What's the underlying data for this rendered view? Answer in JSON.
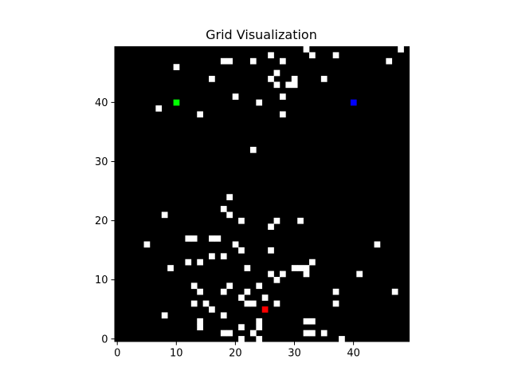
{
  "chart_data": {
    "type": "heatmap",
    "title": "Grid Visualization",
    "grid_size": [
      50,
      50
    ],
    "xlim": [
      0,
      49
    ],
    "ylim": [
      0,
      49
    ],
    "y_origin": "bottom",
    "x_ticks": [
      "0",
      "10",
      "20",
      "30",
      "40"
    ],
    "y_ticks": [
      "0",
      "10",
      "20",
      "30",
      "40"
    ],
    "colors": {
      "background": "#000000",
      "obstacle": "#ffffff",
      "start": "#00ff00",
      "goal": "#0000ff",
      "agent": "#ff0000"
    },
    "markers": [
      {
        "name": "start",
        "x": 10,
        "y": 40
      },
      {
        "name": "goal",
        "x": 40,
        "y": 40
      },
      {
        "name": "agent",
        "x": 25,
        "y": 5
      }
    ],
    "obstacles": [
      [
        32,
        49
      ],
      [
        48,
        49
      ],
      [
        26,
        48
      ],
      [
        33,
        48
      ],
      [
        37,
        48
      ],
      [
        18,
        47
      ],
      [
        19,
        47
      ],
      [
        23,
        47
      ],
      [
        28,
        47
      ],
      [
        46,
        47
      ],
      [
        10,
        46
      ],
      [
        27,
        45
      ],
      [
        16,
        44
      ],
      [
        26,
        44
      ],
      [
        30,
        44
      ],
      [
        35,
        44
      ],
      [
        27,
        43
      ],
      [
        29,
        43
      ],
      [
        30,
        43
      ],
      [
        20,
        41
      ],
      [
        28,
        41
      ],
      [
        7,
        39
      ],
      [
        24,
        40
      ],
      [
        14,
        38
      ],
      [
        28,
        38
      ],
      [
        23,
        32
      ],
      [
        19,
        24
      ],
      [
        18,
        22
      ],
      [
        8,
        21
      ],
      [
        19,
        21
      ],
      [
        21,
        20
      ],
      [
        27,
        20
      ],
      [
        31,
        20
      ],
      [
        26,
        19
      ],
      [
        12,
        17
      ],
      [
        13,
        17
      ],
      [
        16,
        17
      ],
      [
        17,
        17
      ],
      [
        5,
        16
      ],
      [
        20,
        16
      ],
      [
        44,
        16
      ],
      [
        21,
        15
      ],
      [
        26,
        15
      ],
      [
        16,
        14
      ],
      [
        18,
        14
      ],
      [
        12,
        13
      ],
      [
        14,
        13
      ],
      [
        33,
        13
      ],
      [
        9,
        12
      ],
      [
        22,
        12
      ],
      [
        30,
        12
      ],
      [
        31,
        12
      ],
      [
        32,
        12
      ],
      [
        26,
        11
      ],
      [
        28,
        11
      ],
      [
        32,
        11
      ],
      [
        41,
        11
      ],
      [
        27,
        10
      ],
      [
        13,
        9
      ],
      [
        19,
        9
      ],
      [
        24,
        9
      ],
      [
        14,
        8
      ],
      [
        18,
        8
      ],
      [
        22,
        8
      ],
      [
        37,
        8
      ],
      [
        47,
        8
      ],
      [
        21,
        7
      ],
      [
        25,
        7
      ],
      [
        13,
        6
      ],
      [
        15,
        6
      ],
      [
        22,
        6
      ],
      [
        23,
        6
      ],
      [
        27,
        6
      ],
      [
        37,
        6
      ],
      [
        16,
        5
      ],
      [
        8,
        4
      ],
      [
        18,
        4
      ],
      [
        14,
        3
      ],
      [
        24,
        3
      ],
      [
        32,
        3
      ],
      [
        33,
        3
      ],
      [
        14,
        2
      ],
      [
        21,
        2
      ],
      [
        24,
        2
      ],
      [
        18,
        1
      ],
      [
        19,
        1
      ],
      [
        23,
        1
      ],
      [
        32,
        1
      ],
      [
        33,
        1
      ],
      [
        35,
        1
      ],
      [
        21,
        0
      ],
      [
        24,
        0
      ],
      [
        38,
        0
      ]
    ]
  }
}
